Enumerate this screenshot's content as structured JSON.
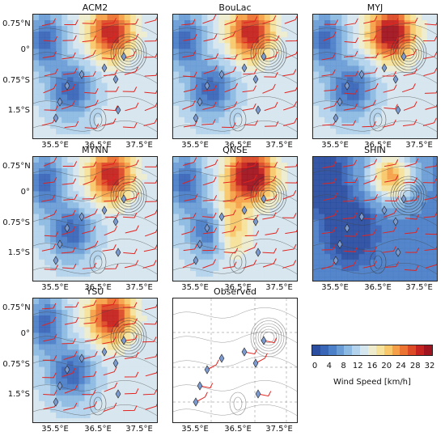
{
  "panels": [
    {
      "title": "ACM2",
      "variant": "wrf"
    },
    {
      "title": "BouLac",
      "variant": "wrf"
    },
    {
      "title": "MYJ",
      "variant": "wrf"
    },
    {
      "title": "MYNN",
      "variant": "wrf"
    },
    {
      "title": "QNSE",
      "variant": "wrf"
    },
    {
      "title": "SHIN",
      "variant": "wrf"
    },
    {
      "title": "YSU",
      "variant": "wrf"
    },
    {
      "title": "Observed",
      "variant": "observed"
    }
  ],
  "y_axis_labels": [
    "0.75°N",
    "0°",
    "0.75°S",
    "1.5°S"
  ],
  "x_axis_labels": [
    "35.5°E",
    "36.5°E",
    "37.5°E"
  ],
  "colorbar": {
    "label": "Wind Speed [km/h]",
    "ticks": [
      "0",
      "4",
      "8",
      "12",
      "16",
      "20",
      "24",
      "28",
      "32"
    ],
    "colors": [
      "#2b4ea0",
      "#3a66b8",
      "#4c80c8",
      "#6a9dd6",
      "#8dbae3",
      "#b3d3ec",
      "#d6e6ee",
      "#eeeccd",
      "#f6e29a",
      "#f8c86a",
      "#f5a048",
      "#ec7432",
      "#dc4a26",
      "#c4231f",
      "#a01420"
    ]
  }
}
